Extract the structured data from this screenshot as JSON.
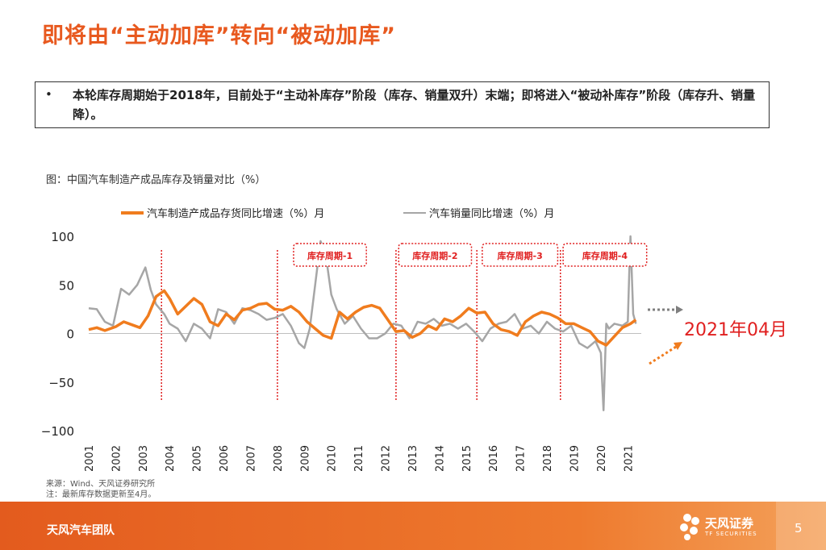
{
  "slide": {
    "title": "即将由“主动加库”转向“被动加库”",
    "bullet_marker": "•",
    "bullet_text": "本轮库存周期始于2018年，目前处于“主动补库存”阶段（库存、销量双升）末端；即将进入“被动补库存”阶段（库存升、销量降）。",
    "chart_caption": "图：中国汽车制造产成品库存及销量对比（%）",
    "source_line1": "来源：Wind、天风证券研究所",
    "source_line2": "注：最新库存数据更新至4月。",
    "footer_team": "天风汽车团队",
    "footer_brand": "天风证券",
    "footer_brand_en": "TF SECURITIES",
    "page_number": "5"
  },
  "colors": {
    "accent": "#E8591F",
    "inventory_line": "#F07C1E",
    "sales_line": "#A6A6A6",
    "cycle_red": "#E02020",
    "annotation_gray": "#7F7F7F"
  },
  "chart_data": {
    "type": "line",
    "title": "中国汽车制造产成品库存及销量对比（%）",
    "xlabel": "",
    "ylabel": "",
    "x_range": [
      2001.0,
      2021.5
    ],
    "ylim": [
      -100,
      100
    ],
    "yticks": [
      100,
      50,
      0,
      -50,
      -100
    ],
    "ytick_labels": [
      "100",
      "50",
      "0",
      "−50",
      "−100"
    ],
    "xticks": [
      "2001",
      "2002",
      "2003",
      "2004",
      "2005",
      "2006",
      "2007",
      "2008",
      "2009",
      "2010",
      "2011",
      "2012",
      "2013",
      "2014",
      "2015",
      "2016",
      "2017",
      "2018",
      "2019",
      "2020",
      "2021"
    ],
    "grid": false,
    "legend_position": "top",
    "series": [
      {
        "name": "汽车制造产成品存货同比增速（%）月",
        "color": "#F07C1E",
        "x": [
          2001.0,
          2001.3,
          2001.6,
          2002.0,
          2002.3,
          2002.6,
          2002.9,
          2003.2,
          2003.5,
          2003.8,
          2004.0,
          2004.3,
          2004.6,
          2004.9,
          2005.2,
          2005.5,
          2005.8,
          2006.1,
          2006.4,
          2006.7,
          2007.0,
          2007.3,
          2007.6,
          2007.9,
          2008.2,
          2008.5,
          2008.8,
          2009.1,
          2009.4,
          2009.7,
          2010.0,
          2010.3,
          2010.6,
          2010.9,
          2011.2,
          2011.5,
          2011.8,
          2012.1,
          2012.4,
          2012.7,
          2013.0,
          2013.3,
          2013.6,
          2013.9,
          2014.2,
          2014.5,
          2014.8,
          2015.1,
          2015.4,
          2015.7,
          2016.0,
          2016.3,
          2016.6,
          2016.9,
          2017.2,
          2017.5,
          2017.8,
          2018.1,
          2018.4,
          2018.7,
          2019.0,
          2019.3,
          2019.6,
          2019.9,
          2020.2,
          2020.5,
          2020.8,
          2021.1,
          2021.3
        ],
        "y": [
          4,
          6,
          3,
          7,
          12,
          9,
          6,
          18,
          38,
          44,
          36,
          20,
          28,
          36,
          30,
          12,
          8,
          20,
          14,
          24,
          26,
          30,
          31,
          25,
          24,
          28,
          22,
          12,
          5,
          -2,
          -5,
          22,
          15,
          22,
          27,
          29,
          26,
          14,
          2,
          3,
          -4,
          0,
          8,
          4,
          15,
          12,
          18,
          26,
          21,
          22,
          10,
          4,
          2,
          -2,
          12,
          18,
          22,
          20,
          16,
          10,
          10,
          6,
          2,
          -8,
          -12,
          -3,
          6,
          10,
          14
        ]
      },
      {
        "name": "汽车销量同比增速（%）月",
        "color": "#A6A6A6",
        "x": [
          2001.0,
          2001.3,
          2001.6,
          2001.9,
          2002.2,
          2002.5,
          2002.8,
          2003.1,
          2003.3,
          2003.5,
          2003.8,
          2004.0,
          2004.3,
          2004.6,
          2004.9,
          2005.2,
          2005.5,
          2005.8,
          2006.1,
          2006.4,
          2006.7,
          2007.0,
          2007.3,
          2007.6,
          2007.9,
          2008.2,
          2008.5,
          2008.8,
          2009.0,
          2009.2,
          2009.4,
          2009.6,
          2009.8,
          2010.0,
          2010.2,
          2010.5,
          2010.8,
          2011.1,
          2011.4,
          2011.7,
          2012.0,
          2012.3,
          2012.6,
          2012.9,
          2013.2,
          2013.5,
          2013.8,
          2014.1,
          2014.4,
          2014.7,
          2015.0,
          2015.3,
          2015.6,
          2015.9,
          2016.2,
          2016.5,
          2016.8,
          2017.1,
          2017.4,
          2017.7,
          2018.0,
          2018.3,
          2018.6,
          2018.9,
          2019.2,
          2019.5,
          2019.8,
          2020.0,
          2020.05,
          2020.1,
          2020.2,
          2020.3,
          2020.5,
          2020.8,
          2021.0,
          2021.05,
          2021.1,
          2021.2,
          2021.3
        ],
        "y": [
          26,
          25,
          12,
          8,
          46,
          40,
          50,
          68,
          45,
          30,
          20,
          10,
          5,
          -8,
          10,
          5,
          -5,
          25,
          22,
          10,
          26,
          24,
          20,
          14,
          16,
          20,
          8,
          -10,
          -15,
          5,
          50,
          95,
          80,
          40,
          25,
          10,
          18,
          5,
          -5,
          -5,
          0,
          10,
          8,
          -5,
          12,
          10,
          15,
          8,
          10,
          5,
          10,
          2,
          -8,
          5,
          10,
          12,
          20,
          5,
          8,
          0,
          12,
          5,
          2,
          8,
          -10,
          -15,
          -8,
          -20,
          -50,
          -79,
          10,
          5,
          10,
          8,
          12,
          60,
          100,
          20,
          10
        ]
      }
    ],
    "cycle_dividers_x": [
      2003.7,
      2008.0,
      2012.4,
      2015.4,
      2018.5
    ],
    "cycle_boxes": [
      {
        "label": "库存周期-1",
        "x_start": 2008.6,
        "x_end": 2011.3
      },
      {
        "label": "库存周期-2",
        "x_start": 2012.5,
        "x_end": 2015.2
      },
      {
        "label": "库存周期-3",
        "x_start": 2015.6,
        "x_end": 2018.4
      },
      {
        "label": "库存周期-4",
        "x_start": 2018.6,
        "x_end": 2021.7
      }
    ],
    "annotation": "2021年04月"
  }
}
